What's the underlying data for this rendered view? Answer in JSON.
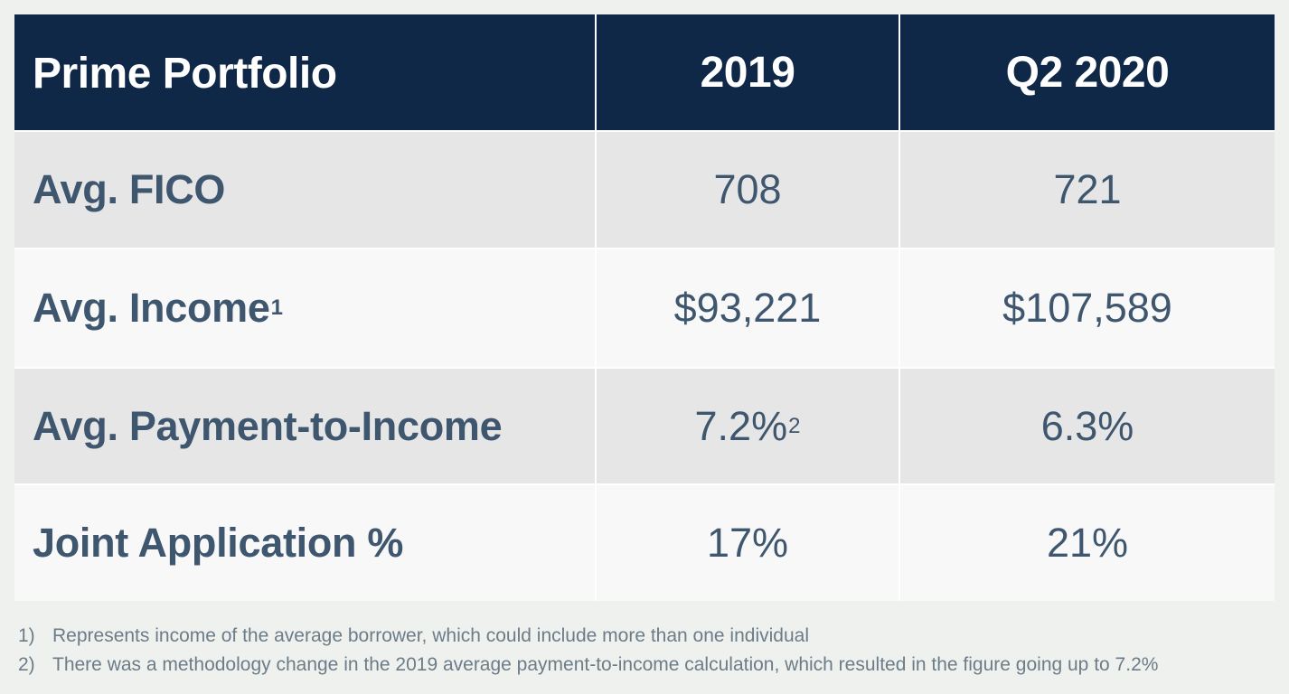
{
  "table": {
    "headers": [
      "Prime Portfolio",
      "2019",
      "Q2 2020"
    ],
    "rows": [
      {
        "label": "Avg. FICO",
        "label_sup": "",
        "v2019": "708",
        "v2019_sup": "",
        "vq2_2020": "721"
      },
      {
        "label": "Avg. Income",
        "label_sup": "1",
        "v2019": "$93,221",
        "v2019_sup": "",
        "vq2_2020": "$107,589"
      },
      {
        "label": "Avg. Payment-to-Income",
        "label_sup": "",
        "v2019": "7.2%",
        "v2019_sup": "2",
        "vq2_2020": "6.3%"
      },
      {
        "label": "Joint Application %",
        "label_sup": "",
        "v2019": "17%",
        "v2019_sup": "",
        "vq2_2020": "21%"
      }
    ]
  },
  "footnotes": [
    {
      "num": "1)",
      "text": "Represents income of the average borrower, which could include more than one individual"
    },
    {
      "num": "2)",
      "text": "There was a methodology change in the 2019 average payment-to-income calculation, which resulted in the figure going up to 7.2%"
    }
  ],
  "colors": {
    "header_bg": "#0f2847",
    "header_text": "#ffffff",
    "body_text": "#3f566f",
    "row_alt_dark": "#e6e6e6",
    "row_alt_light": "#f8f8f8",
    "page_bg": "#eef1ee",
    "footnote_text": "#6c7c88"
  }
}
